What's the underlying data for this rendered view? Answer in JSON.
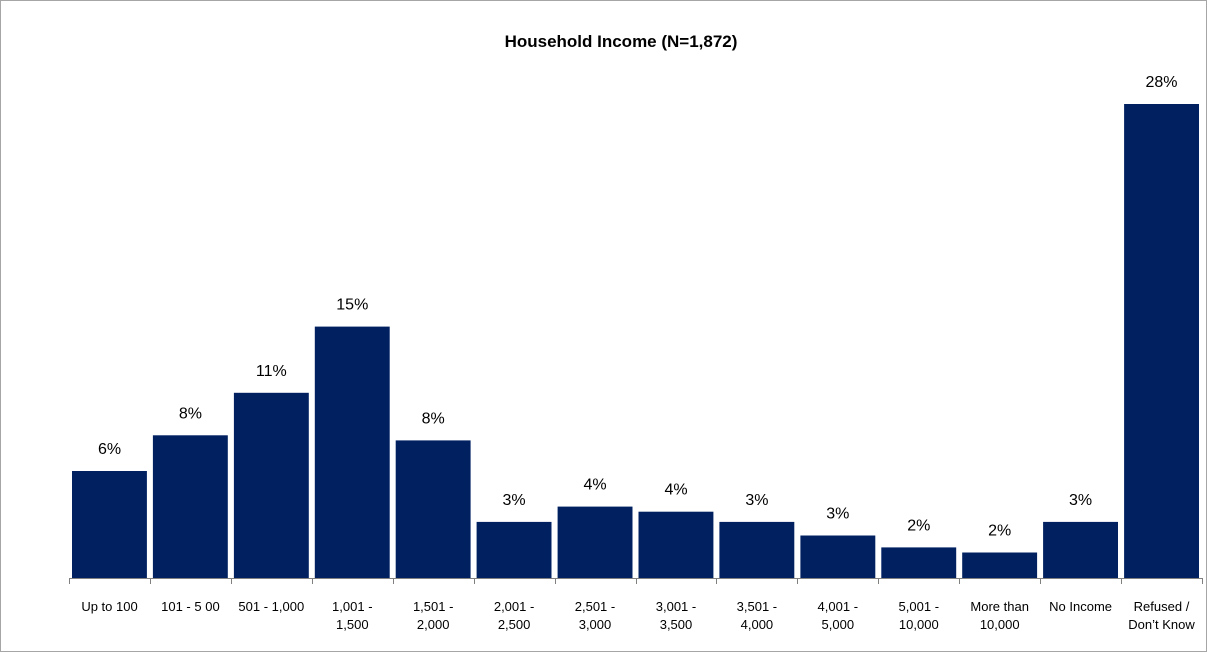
{
  "chart_data": {
    "type": "bar",
    "title": "Household Income (N=1,872)",
    "xlabel": "",
    "ylabel": "",
    "categories": [
      [
        "Up to 100"
      ],
      [
        "101 - 5 00"
      ],
      [
        "501 - 1,000"
      ],
      [
        "1,001 -",
        "1,500"
      ],
      [
        "1,501 -",
        "2,000"
      ],
      [
        "2,001 -",
        "2,500"
      ],
      [
        "2,501 -",
        "3,000"
      ],
      [
        "3,001 -",
        "3,500"
      ],
      [
        "3,501 -",
        "4,000"
      ],
      [
        "4,001 -",
        "5,000"
      ],
      [
        "5,001 -",
        "10,000"
      ],
      [
        "More than",
        "10,000"
      ],
      [
        "No Income"
      ],
      [
        "Refused /",
        "Don’t Know"
      ]
    ],
    "values": [
      6.3,
      8.4,
      10.9,
      14.8,
      8.1,
      3.3,
      4.2,
      3.9,
      3.3,
      2.5,
      1.8,
      1.5,
      3.3,
      27.9
    ],
    "labels": [
      "6%",
      "8%",
      "11%",
      "15%",
      "8%",
      "3%",
      "4%",
      "4%",
      "3%",
      "3%",
      "2%",
      "2%",
      "3%",
      "28%"
    ],
    "ylim": [
      0,
      30
    ],
    "grid": false,
    "legend": "none",
    "bar_color": "#002060"
  }
}
